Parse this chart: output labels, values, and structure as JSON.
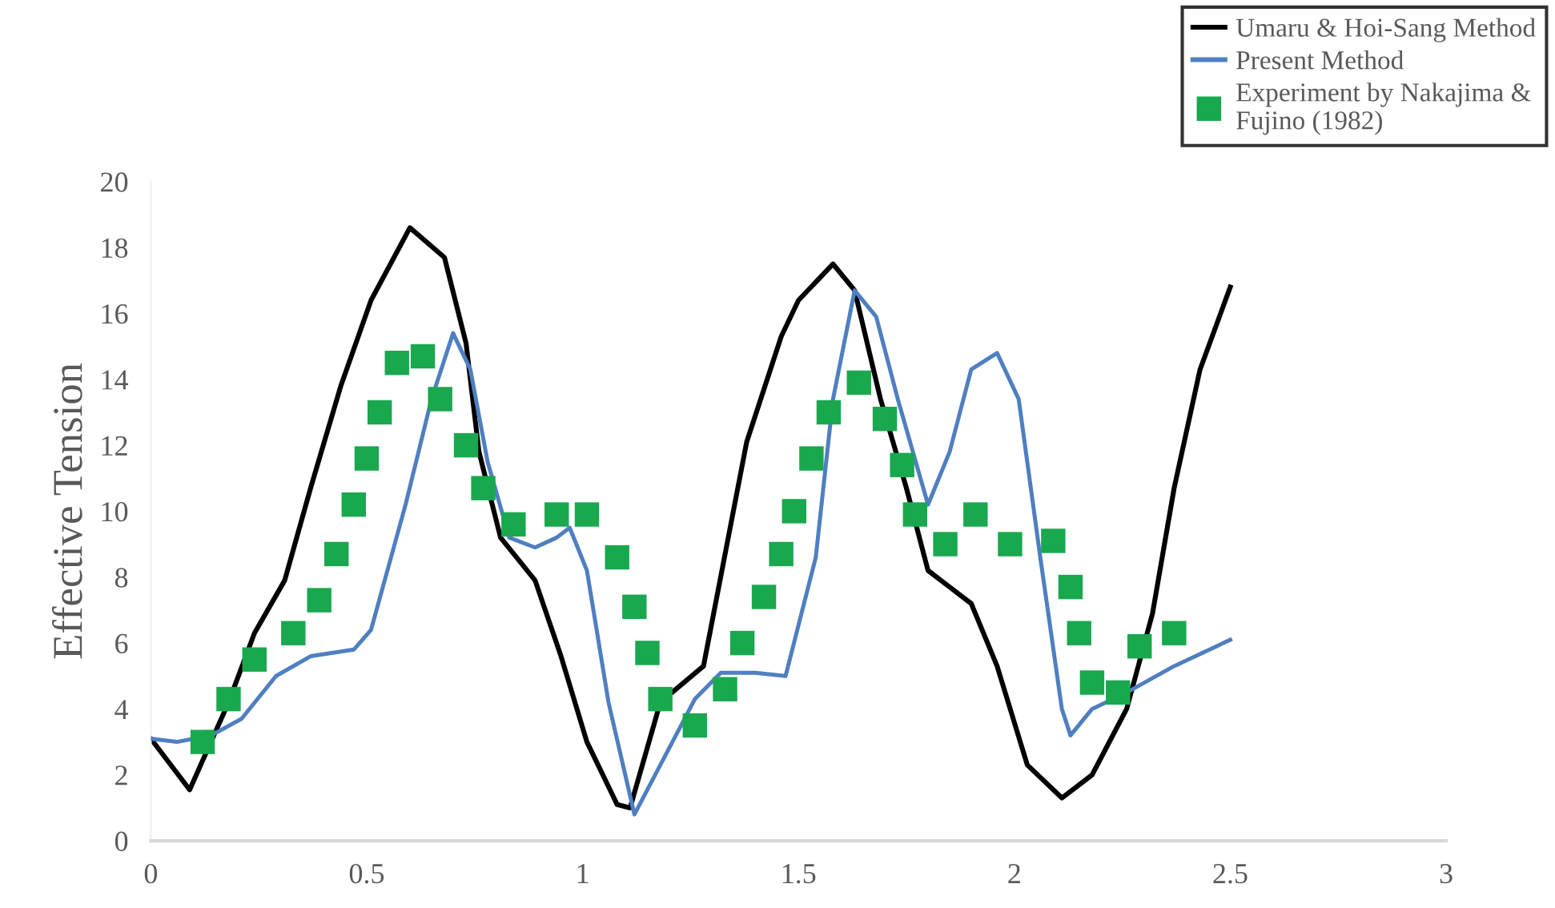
{
  "chart_data": {
    "type": "line",
    "ylabel": "Effective Tension",
    "xlim": [
      0,
      3
    ],
    "ylim": [
      0,
      20
    ],
    "xticks": [
      0,
      0.5,
      1,
      1.5,
      2,
      2.5,
      3
    ],
    "yticks": [
      0,
      2,
      4,
      6,
      8,
      10,
      12,
      14,
      16,
      18,
      20
    ],
    "grid": false,
    "legend": "top right",
    "series": [
      {
        "name": "Umaru & Hoi-Sang Method",
        "color": "#000000",
        "marker": "none",
        "x": [
          0,
          0.09,
          0.18,
          0.24,
          0.31,
          0.37,
          0.44,
          0.51,
          0.6,
          0.68,
          0.73,
          0.76,
          0.81,
          0.89,
          0.95,
          1.01,
          1.08,
          1.11,
          1.18,
          1.28,
          1.38,
          1.46,
          1.5,
          1.58,
          1.63,
          1.69,
          1.75,
          1.8,
          1.85,
          1.9,
          1.96,
          2.03,
          2.11,
          2.18,
          2.26,
          2.32,
          2.37,
          2.43,
          2.5
        ],
        "values": [
          3.1,
          1.55,
          4.2,
          6.3,
          7.9,
          10.7,
          13.8,
          16.4,
          18.6,
          17.7,
          15.1,
          11.8,
          9.2,
          7.9,
          5.6,
          3.0,
          1.1,
          1.0,
          4.2,
          5.3,
          12.1,
          15.3,
          16.4,
          17.5,
          16.7,
          13.4,
          10.7,
          8.2,
          7.7,
          7.2,
          5.3,
          2.3,
          1.3,
          2.0,
          4.0,
          6.9,
          10.7,
          14.3,
          16.8
        ]
      },
      {
        "name": "Present Method",
        "color": "#4f7fc0",
        "marker": "none",
        "x": [
          0,
          0.06,
          0.14,
          0.21,
          0.29,
          0.37,
          0.47,
          0.51,
          0.59,
          0.65,
          0.7,
          0.74,
          0.78,
          0.83,
          0.89,
          0.94,
          0.97,
          1.01,
          1.06,
          1.12,
          1.18,
          1.26,
          1.32,
          1.4,
          1.47,
          1.54,
          1.58,
          1.63,
          1.68,
          1.73,
          1.8,
          1.85,
          1.9,
          1.96,
          2.01,
          2.06,
          2.11,
          2.13,
          2.18,
          2.26,
          2.37,
          2.5
        ],
        "values": [
          3.1,
          3.0,
          3.2,
          3.7,
          5.0,
          5.6,
          5.8,
          6.4,
          10.2,
          13.4,
          15.4,
          14.3,
          11.5,
          9.2,
          8.9,
          9.2,
          9.5,
          8.2,
          4.2,
          0.8,
          2.3,
          4.3,
          5.1,
          5.1,
          5.0,
          8.6,
          13.4,
          16.7,
          15.9,
          13.4,
          10.2,
          11.8,
          14.3,
          14.8,
          13.4,
          8.6,
          4.0,
          3.2,
          4.0,
          4.5,
          5.3,
          6.1
        ]
      },
      {
        "name": "Experiment by Nakajima &\nFujino (1982)",
        "color": "#1aa84f",
        "type": "scatter",
        "marker": "square",
        "x": [
          0.12,
          0.18,
          0.24,
          0.33,
          0.39,
          0.43,
          0.47,
          0.5,
          0.53,
          0.57,
          0.63,
          0.67,
          0.73,
          0.77,
          0.84,
          0.94,
          1.01,
          1.08,
          1.12,
          1.15,
          1.18,
          1.26,
          1.33,
          1.37,
          1.42,
          1.46,
          1.49,
          1.53,
          1.57,
          1.64,
          1.7,
          1.74,
          1.77,
          1.84,
          1.91,
          1.99,
          2.09,
          2.13,
          2.15,
          2.18,
          2.24,
          2.29,
          2.37
        ],
        "values": [
          3.0,
          4.3,
          5.5,
          6.3,
          7.3,
          8.7,
          10.2,
          11.6,
          13.0,
          14.5,
          14.7,
          13.4,
          12.0,
          10.7,
          9.6,
          9.9,
          9.9,
          8.6,
          7.1,
          5.7,
          4.3,
          3.5,
          4.6,
          6.0,
          7.4,
          8.7,
          10.0,
          11.6,
          13.0,
          13.9,
          12.8,
          11.4,
          9.9,
          9.0,
          9.9,
          9.0,
          9.1,
          7.7,
          6.3,
          4.8,
          4.5,
          5.9,
          6.3
        ]
      }
    ]
  }
}
